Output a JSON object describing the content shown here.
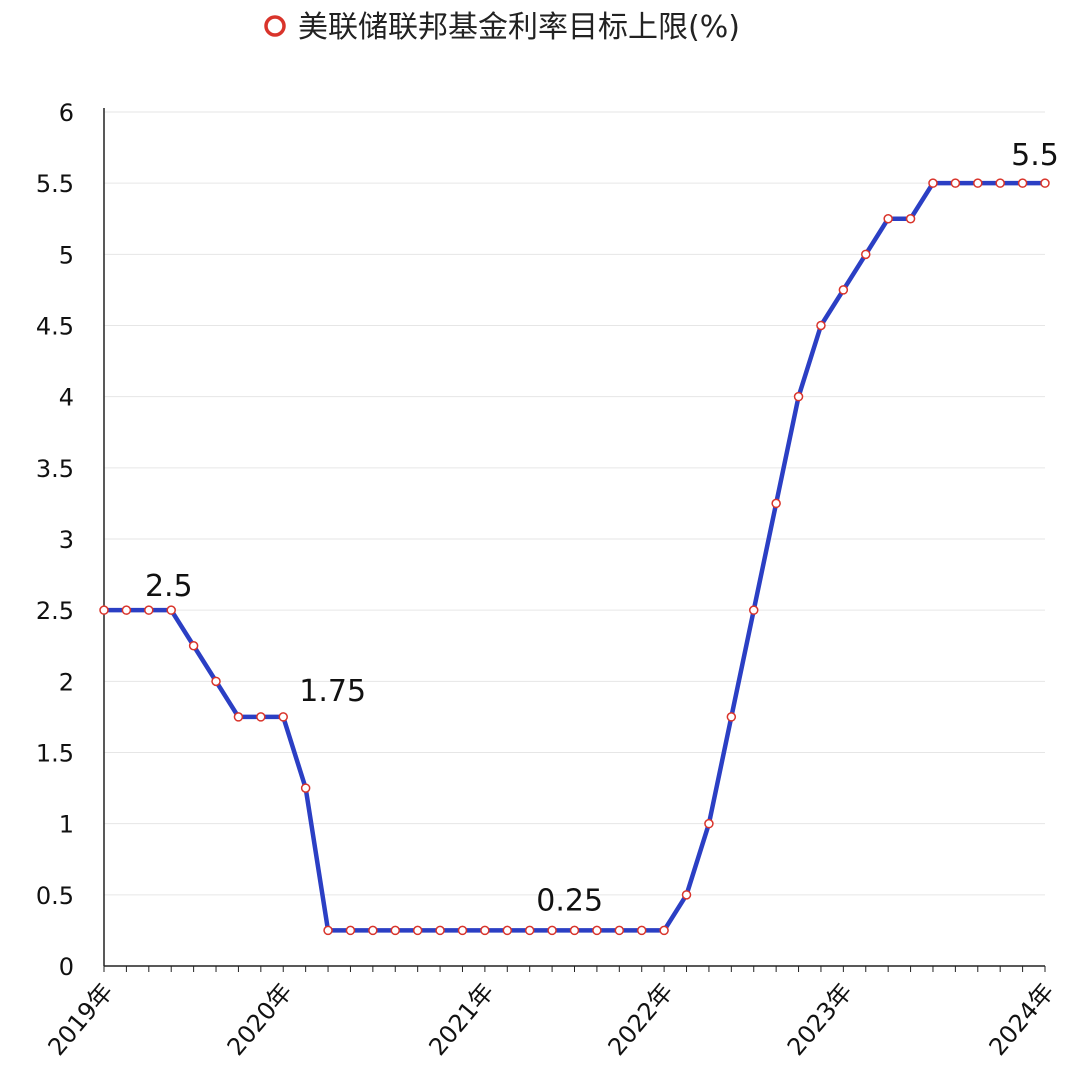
{
  "chart_data": {
    "type": "line",
    "title": "",
    "xlabel": "",
    "ylabel": "",
    "ylim": [
      0,
      6
    ],
    "yticks": [
      "0",
      "0.5",
      "1",
      "1.5",
      "2",
      "2.5",
      "3",
      "3.5",
      "4",
      "4.5",
      "5",
      "5.5",
      "6"
    ],
    "grid": true,
    "legend": {
      "placement": "top",
      "label": "美联储联邦基金利率目标上限(%)"
    },
    "x_tick_labels": [
      {
        "index": 0,
        "label": "2019年"
      },
      {
        "index": 8,
        "label": "2020年"
      },
      {
        "index": 17,
        "label": "2021年"
      },
      {
        "index": 25,
        "label": "2022年"
      },
      {
        "index": 33,
        "label": "2023年"
      },
      {
        "index": 42,
        "label": "2024年"
      }
    ],
    "series": [
      {
        "name": "美联储联邦基金利率目标上限(%)",
        "color": "#2b3fc4",
        "marker_color": "#d9342b",
        "values": [
          2.5,
          2.5,
          2.5,
          2.5,
          2.25,
          2,
          1.75,
          1.75,
          1.75,
          1.25,
          0.25,
          0.25,
          0.25,
          0.25,
          0.25,
          0.25,
          0.25,
          0.25,
          0.25,
          0.25,
          0.25,
          0.25,
          0.25,
          0.25,
          0.25,
          0.25,
          0.5,
          1,
          1.75,
          2.5,
          3.25,
          4,
          4.5,
          4.75,
          5,
          5.25,
          5.25,
          5.5,
          5.5,
          5.5,
          5.5,
          5.5,
          5.5
        ]
      }
    ],
    "data_labels": [
      {
        "index": 2,
        "label": "2.5"
      },
      {
        "index": 8,
        "label": "1.75"
      },
      {
        "index": 19,
        "label": "0.25"
      },
      {
        "index": 42,
        "label": "5.5"
      }
    ]
  }
}
